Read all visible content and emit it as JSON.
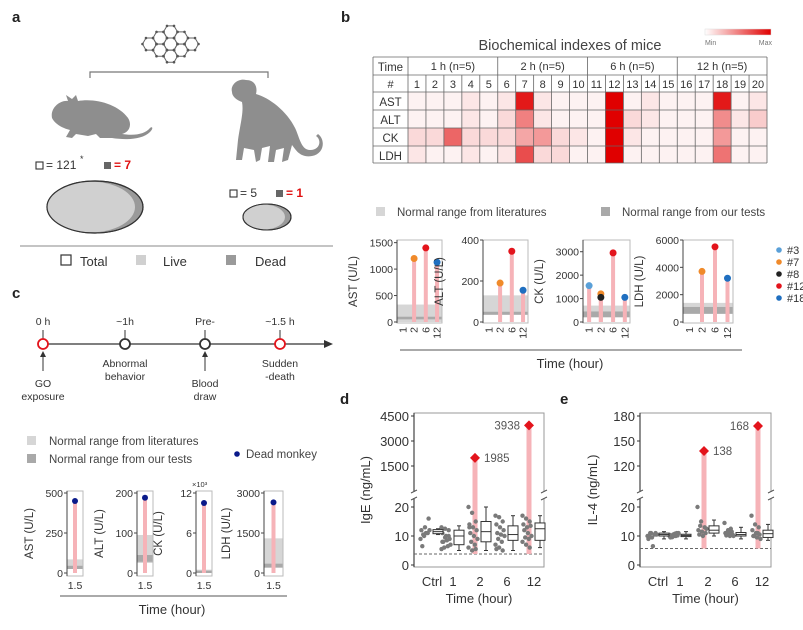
{
  "panel_labels": {
    "a": "a",
    "b": "b",
    "c": "c",
    "d": "d",
    "e": "e"
  },
  "panel_a": {
    "mouse": {
      "total": "= 121",
      "total_note": "*",
      "dead": "= 7"
    },
    "monkey": {
      "total": "= 5",
      "dead": "= 1"
    },
    "legend": {
      "total": "Total",
      "live": "Live",
      "dead": "Dead"
    },
    "colors": {
      "live": "#d0d0d0",
      "dead": "#9a9a9a",
      "dead_count_text": "#e01010",
      "silhouette": "#8e8e8e"
    },
    "icons": [
      "graphene-icon",
      "mouse-icon",
      "monkey-icon"
    ]
  },
  "panel_b_legend": {
    "literature": "Normal range from literatures",
    "ours": "Normal range from our tests",
    "xlabel": "Time (hour)",
    "mice": [
      {
        "label": "#3",
        "color": "#5aa0d8"
      },
      {
        "label": "#7",
        "color": "#f08a2a"
      },
      {
        "label": "#8",
        "color": "#222222"
      },
      {
        "label": "#12",
        "color": "#e3141c"
      },
      {
        "label": "#18",
        "color": "#1f6fc0"
      }
    ]
  },
  "panel_c": {
    "timeline": [
      {
        "top": "0 h",
        "bottom": [
          "GO",
          "exposure"
        ],
        "color": "#e3141c",
        "arrow": true
      },
      {
        "top": "~1h",
        "bottom": [
          "Abnormal",
          "behavior"
        ],
        "color": "#333333",
        "arrow": false
      },
      {
        "top": "Pre-",
        "bottom": [
          "Blood",
          "draw"
        ],
        "color": "#333333",
        "arrow": true
      },
      {
        "top": "~1.5 h",
        "bottom": [
          "Sudden",
          "-death"
        ],
        "color": "#e3141c",
        "arrow": false
      }
    ],
    "legend": {
      "literature": "Normal range from literatures",
      "ours": "Normal range from our tests",
      "dead": "Dead monkey",
      "dead_color": "#0a1a8a"
    },
    "xlabel": "Time (hour)"
  },
  "colors": {
    "literature_band": "#d6d6d6",
    "ours_band": "#a9a9a9",
    "stem": "#f6b3b8",
    "outlier": "#e3141c",
    "scatter": "#7a7a7a"
  },
  "chart_data": [
    {
      "type": "heatmap",
      "title": "Biochemical indexes of mice",
      "colorbar": {
        "min_label": "Min",
        "max_label": "Max",
        "min_color": "#ffffff",
        "max_color": "#e00000"
      },
      "header_labels": [
        "Time",
        "#"
      ],
      "groups": [
        "1 h (n=5)",
        "2 h (n=5)",
        "6 h (n=5)",
        "12 h (n=5)"
      ],
      "columns": [
        "1",
        "2",
        "3",
        "4",
        "5",
        "6",
        "7",
        "8",
        "9",
        "10",
        "11",
        "12",
        "13",
        "14",
        "15",
        "16",
        "17",
        "18",
        "19",
        "20"
      ],
      "rows": [
        {
          "label": "AST",
          "values": [
            0.05,
            0.05,
            0.05,
            0.1,
            0.05,
            0.1,
            0.9,
            0.1,
            0.05,
            0.05,
            0.05,
            1,
            0.05,
            0.1,
            0.05,
            0.05,
            0.05,
            0.9,
            0.05,
            0.1
          ]
        },
        {
          "label": "ALT",
          "values": [
            0.05,
            0.05,
            0.05,
            0.1,
            0.05,
            0.15,
            0.5,
            0.1,
            0.05,
            0.05,
            0.05,
            1,
            0.15,
            0.1,
            0.05,
            0.05,
            0.05,
            0.45,
            0.1,
            0.2
          ]
        },
        {
          "label": "CK",
          "values": [
            0.15,
            0.15,
            0.6,
            0.15,
            0.15,
            0.15,
            0.35,
            0.4,
            0.15,
            0.1,
            0.05,
            1,
            0.1,
            0.05,
            0.05,
            0.05,
            0.05,
            0.4,
            0.05,
            0.05
          ]
        },
        {
          "label": "LDH",
          "values": [
            0.1,
            0.05,
            0.05,
            0.1,
            0.05,
            0.1,
            0.7,
            0.15,
            0.15,
            0.05,
            0.05,
            1,
            0.05,
            0.05,
            0.05,
            0.05,
            0.05,
            0.55,
            0.05,
            0.05
          ]
        }
      ]
    },
    {
      "type": "lollipop",
      "ylabel": "AST (U/L)",
      "ylim": [
        0,
        1550
      ],
      "yticks": [
        "0",
        "500",
        "1000",
        "1500"
      ],
      "xticks": [
        "1",
        "2",
        "6",
        "12"
      ],
      "normal_literature": [
        0,
        330
      ],
      "normal_ours": [
        50,
        100
      ],
      "points": [
        {
          "x": "2",
          "mouse": "#7",
          "value": 1200
        },
        {
          "x": "6",
          "mouse": "#12",
          "value": 1400
        },
        {
          "x": "12",
          "mouse": "#18",
          "value": 1130
        }
      ]
    },
    {
      "type": "lollipop",
      "ylabel": "ALT (U/L)",
      "ylim": [
        0,
        400
      ],
      "yticks": [
        "0",
        "200",
        "400"
      ],
      "xticks": [
        "1",
        "2",
        "6",
        "12"
      ],
      "normal_literature": [
        40,
        130
      ],
      "normal_ours": [
        35,
        50
      ],
      "points": [
        {
          "x": "2",
          "mouse": "#7",
          "value": 190
        },
        {
          "x": "6",
          "mouse": "#12",
          "value": 345
        },
        {
          "x": "12",
          "mouse": "#18",
          "value": 155
        }
      ]
    },
    {
      "type": "lollipop",
      "ylabel": "CK (U/L)",
      "ylim": [
        0,
        3500
      ],
      "yticks": [
        "0",
        "1000",
        "2000",
        "3000"
      ],
      "xticks": [
        "1",
        "2",
        "6",
        "12"
      ],
      "normal_literature": [
        300,
        700
      ],
      "normal_ours": [
        200,
        450
      ],
      "points": [
        {
          "x": "1",
          "mouse": "#3",
          "value": 1550
        },
        {
          "x": "2",
          "mouse": "#7",
          "value": 1200
        },
        {
          "x": "2",
          "mouse": "#8",
          "value": 1050
        },
        {
          "x": "6",
          "mouse": "#12",
          "value": 2950
        },
        {
          "x": "12",
          "mouse": "#18",
          "value": 1050
        }
      ]
    },
    {
      "type": "lollipop",
      "ylabel": "LDH (U/L)",
      "ylim": [
        0,
        6000
      ],
      "yticks": [
        "0",
        "2000",
        "4000",
        "6000"
      ],
      "xticks": [
        "1",
        "2",
        "6",
        "12"
      ],
      "normal_literature": [
        600,
        1400
      ],
      "normal_ours": [
        600,
        1100
      ],
      "points": [
        {
          "x": "2",
          "mouse": "#7",
          "value": 3700
        },
        {
          "x": "6",
          "mouse": "#12",
          "value": 5500
        },
        {
          "x": "12",
          "mouse": "#18",
          "value": 3200
        }
      ]
    },
    {
      "type": "lollipop",
      "ylabel": "AST (U/L)",
      "ylim": [
        0,
        500
      ],
      "yticks": [
        "0",
        "250",
        "500"
      ],
      "xticks": [
        "1.5"
      ],
      "normal_literature": [
        25,
        85
      ],
      "normal_ours": [
        25,
        45
      ],
      "value": 450
    },
    {
      "type": "lollipop",
      "ylabel": "ALT (U/L)",
      "ylim": [
        0,
        200
      ],
      "yticks": [
        "0",
        "100",
        "200"
      ],
      "xticks": [
        "1.5"
      ],
      "normal_literature": [
        25,
        95
      ],
      "normal_ours": [
        28,
        45
      ],
      "value": 188
    },
    {
      "type": "lollipop",
      "ylabel": "CK (U/L)",
      "ylim": [
        0,
        12
      ],
      "yticks": [
        "0",
        "6",
        "12"
      ],
      "yunit": "×10³",
      "xticks": [
        "1.5"
      ],
      "normal_literature": [
        0,
        0.5
      ],
      "normal_ours": [
        0,
        0.35
      ],
      "value": 10.5
    },
    {
      "type": "lollipop",
      "ylabel": "LDH (U/L)",
      "ylim": [
        0,
        3000
      ],
      "yticks": [
        "0",
        "1500",
        "3000"
      ],
      "xticks": [
        "1.5"
      ],
      "normal_literature": [
        250,
        1300
      ],
      "normal_ours": [
        200,
        350
      ],
      "value": 2650
    },
    {
      "type": "scatter-box",
      "ylabel": "IgE (ng/mL)",
      "xlabel": "Time (hour)",
      "broken_axis": true,
      "yticks_lower": [
        "0",
        "10",
        "20"
      ],
      "yticks_upper": [
        "1500",
        "3000",
        "4500"
      ],
      "detection_limit": 3.8,
      "categories": [
        "Ctrl",
        "1",
        "2",
        "6",
        "12"
      ],
      "points": [
        [
          9,
          10,
          11,
          12,
          13,
          16,
          6.5,
          11,
          12,
          10.5
        ],
        [
          13,
          12.5,
          12,
          11,
          10,
          9,
          8,
          8.5,
          7,
          6,
          6.5,
          5.5,
          9.5,
          10,
          8
        ],
        [
          20,
          18,
          15,
          14,
          13,
          12,
          11,
          10,
          9,
          8,
          7,
          6,
          5,
          5.5,
          13
        ],
        [
          17,
          16.5,
          15,
          14,
          13,
          12,
          11,
          10.5,
          10,
          9,
          8,
          7,
          6,
          5,
          5.5
        ],
        [
          17,
          16,
          15,
          14,
          13,
          13.5,
          12,
          11,
          10,
          9.5,
          9,
          8,
          7,
          6
        ]
      ],
      "boxes": [
        [
          10.5,
          10.8,
          11.5,
          12.2,
          12.5
        ],
        [
          5,
          7,
          10,
          12,
          13.5
        ],
        [
          5,
          8,
          11.5,
          15,
          20
        ],
        [
          5,
          8.5,
          10.5,
          13.5,
          17
        ],
        [
          6,
          8.5,
          12.5,
          14.5,
          17
        ]
      ],
      "outliers": [
        {
          "category": "2",
          "value": 1985,
          "label": "1985"
        },
        {
          "category": "12",
          "value": 3938,
          "label": "3938"
        }
      ]
    },
    {
      "type": "scatter-box",
      "ylabel": "IL-4 (ng/mL)",
      "xlabel": "Time (hour)",
      "broken_axis": true,
      "yticks_lower": [
        "0",
        "10",
        "20"
      ],
      "yticks_upper": [
        "120",
        "150",
        "180"
      ],
      "detection_limit": 5.7,
      "categories": [
        "Ctrl",
        "1",
        "2",
        "6",
        "12"
      ],
      "points": [
        [
          10,
          11,
          10.5,
          9,
          9.5,
          11,
          10,
          6.5,
          10.5,
          11
        ],
        [
          10,
          10.5,
          11,
          9.5,
          10,
          10.2,
          9.8,
          10.8,
          11,
          9.6,
          10,
          10.4
        ],
        [
          20,
          15,
          13,
          12,
          11.5,
          11,
          10.5,
          10,
          12.5,
          13.5
        ],
        [
          14.5,
          12,
          11.5,
          11,
          10.8,
          10.5,
          10.2,
          10,
          10,
          11.2,
          12.5
        ],
        [
          17,
          14,
          13,
          12,
          11,
          10.5,
          10,
          9.5,
          9,
          10,
          11
        ]
      ],
      "boxes": [
        [
          9,
          10,
          10.5,
          11,
          11.5
        ],
        [
          9,
          9.8,
          10.2,
          10.6,
          11.5
        ],
        [
          10,
          11,
          12,
          13.5,
          15.5
        ],
        [
          9,
          10,
          10.5,
          11.2,
          13
        ],
        [
          8.5,
          9.5,
          10.8,
          12,
          14
        ]
      ],
      "outliers": [
        {
          "category": "2",
          "value": 138,
          "label": "138"
        },
        {
          "category": "12",
          "value": 168,
          "label": "168"
        }
      ]
    }
  ]
}
